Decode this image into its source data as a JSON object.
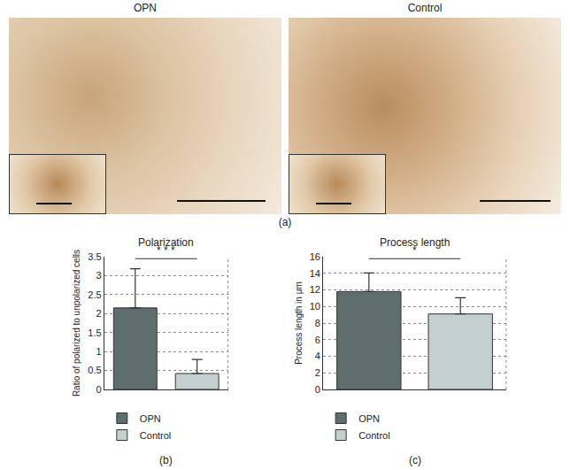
{
  "panel_a": {
    "panels": [
      "OPN",
      "Control"
    ],
    "caption": "(a)"
  },
  "chart_data": [
    {
      "type": "bar",
      "title": "Polarization",
      "y_label": "Ratio of polarized to unpolarized cells",
      "categories": [
        "OPN",
        "Control"
      ],
      "values": [
        2.15,
        0.42
      ],
      "errors": [
        1.03,
        0.37
      ],
      "colors": [
        "#5e6d6e",
        "#c4cfcf"
      ],
      "ylim": [
        0,
        3.5
      ],
      "yticks": [
        0,
        0.5,
        1,
        1.5,
        2,
        2.5,
        3,
        3.5
      ],
      "grid": true,
      "legend": "bottom",
      "tick_labels": "y",
      "significance": "* * *",
      "caption": "(b)"
    },
    {
      "type": "bar",
      "title": "Process length",
      "y_label": "Process length in μm",
      "categories": [
        "OPN",
        "Control"
      ],
      "values": [
        11.8,
        9.1
      ],
      "errors": [
        2.25,
        1.95
      ],
      "colors": [
        "#5e6d6e",
        "#c4cfcf"
      ],
      "ylim": [
        0,
        16
      ],
      "yticks": [
        0,
        2,
        4,
        6,
        8,
        10,
        12,
        14,
        16
      ],
      "grid": true,
      "legend": "bottom",
      "tick_labels": "y",
      "significance": "*",
      "caption": "(c)"
    }
  ]
}
